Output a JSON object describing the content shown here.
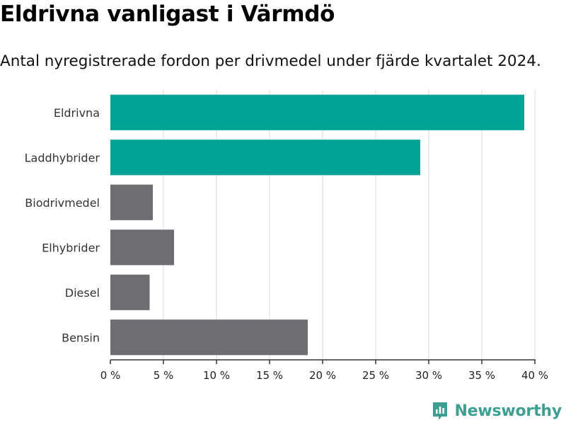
{
  "header": {
    "title": "Eldrivna vanligast i Värmdö",
    "subtitle": "Antal nyregistrerade fordon per drivmedel under fjärde kvartalet 2024."
  },
  "brand": {
    "name": "Newsworthy",
    "icon": "newsworthy-logo-icon",
    "color": "#3f9e92"
  },
  "colors": {
    "highlight": "#00a394",
    "default": "#6e6d72",
    "grid": "#e1e1e1",
    "axis": "#333333"
  },
  "chart_data": {
    "type": "bar",
    "orientation": "horizontal",
    "categories": [
      "Eldrivna",
      "Laddhybrider",
      "Biodrivmedel",
      "Elhybrider",
      "Diesel",
      "Bensin"
    ],
    "values": [
      39,
      29.2,
      4,
      6,
      3.7,
      18.6
    ],
    "highlighted": [
      true,
      true,
      false,
      false,
      false,
      false
    ],
    "xlim": [
      0,
      40
    ],
    "xticks": [
      0,
      5,
      10,
      15,
      20,
      25,
      30,
      35,
      40
    ],
    "xtick_labels": [
      "0 %",
      "5 %",
      "10 %",
      "15 %",
      "20 %",
      "25 %",
      "30 %",
      "35 %",
      "40 %"
    ],
    "grid": true
  }
}
